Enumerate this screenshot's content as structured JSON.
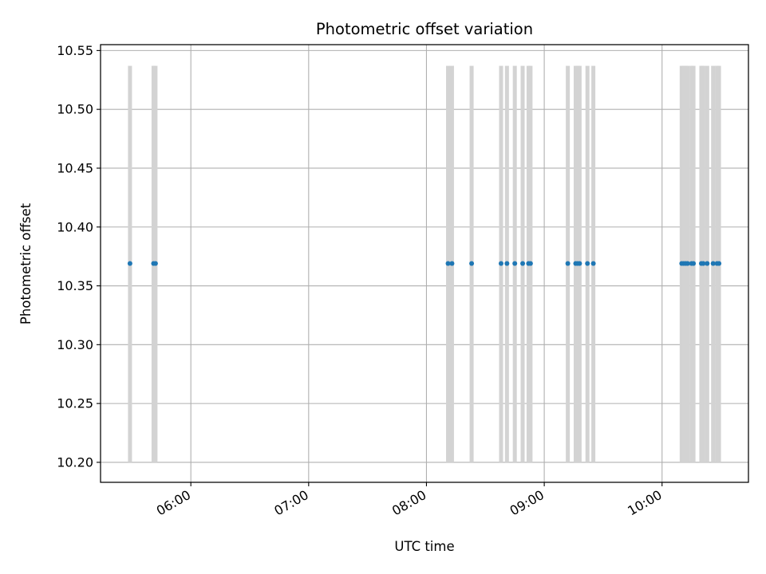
{
  "chart_data": {
    "type": "scatter",
    "title": "Photometric offset variation",
    "xlabel": "UTC time",
    "ylabel": "Photometric offset",
    "grid": true,
    "xlim": [
      "05:14",
      "10:44"
    ],
    "ylim": [
      10.183,
      10.555
    ],
    "x_ticks": [
      "06:00",
      "07:00",
      "08:00",
      "09:00",
      "10:00"
    ],
    "y_ticks": [
      10.2,
      10.25,
      10.3,
      10.35,
      10.4,
      10.45,
      10.5,
      10.55
    ],
    "y_tick_labels": [
      "10.20",
      "10.25",
      "10.30",
      "10.35",
      "10.40",
      "10.45",
      "10.50",
      "10.55"
    ],
    "point_color": "#1f77b4",
    "band_color": "#d3d3d3",
    "band_range": [
      10.2,
      10.537
    ],
    "points": [
      {
        "t": "05:29",
        "y": 10.369
      },
      {
        "t": "05:41",
        "y": 10.369
      },
      {
        "t": "05:42",
        "y": 10.369
      },
      {
        "t": "08:11",
        "y": 10.369
      },
      {
        "t": "08:13",
        "y": 10.369
      },
      {
        "t": "08:23",
        "y": 10.369
      },
      {
        "t": "08:38",
        "y": 10.369
      },
      {
        "t": "08:41",
        "y": 10.369
      },
      {
        "t": "08:45",
        "y": 10.369
      },
      {
        "t": "08:49",
        "y": 10.369
      },
      {
        "t": "08:52",
        "y": 10.369
      },
      {
        "t": "08:53",
        "y": 10.369
      },
      {
        "t": "09:12",
        "y": 10.369
      },
      {
        "t": "09:16",
        "y": 10.369
      },
      {
        "t": "09:17",
        "y": 10.369
      },
      {
        "t": "09:18",
        "y": 10.369
      },
      {
        "t": "09:22",
        "y": 10.369
      },
      {
        "t": "09:25",
        "y": 10.369
      },
      {
        "t": "10:10",
        "y": 10.369
      },
      {
        "t": "10:11",
        "y": 10.369
      },
      {
        "t": "10:12",
        "y": 10.369
      },
      {
        "t": "10:13",
        "y": 10.369
      },
      {
        "t": "10:15",
        "y": 10.369
      },
      {
        "t": "10:16",
        "y": 10.369
      },
      {
        "t": "10:20",
        "y": 10.369
      },
      {
        "t": "10:21",
        "y": 10.369
      },
      {
        "t": "10:23",
        "y": 10.369
      },
      {
        "t": "10:26",
        "y": 10.369
      },
      {
        "t": "10:28",
        "y": 10.369
      },
      {
        "t": "10:29",
        "y": 10.369
      }
    ]
  }
}
